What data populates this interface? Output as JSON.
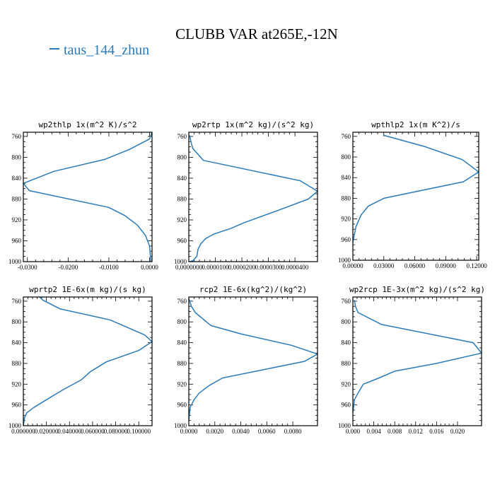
{
  "figure": {
    "title": "CLUBB VAR at265E,-12N",
    "legend": {
      "label": "taus_144_zhun",
      "color": "#2a7ab8"
    }
  },
  "chart_data": [
    {
      "type": "line",
      "title": "wp2thlp  1x(m^2 K)/s^2",
      "xlim": [
        -0.031,
        0.0006
      ],
      "ylim": [
        1000,
        752
      ],
      "x_ticks": [
        -0.03,
        -0.02,
        -0.01,
        0
      ],
      "x_tick_labels": [
        "-0.0300",
        "-0.0200",
        "-0.0100",
        "0.0000"
      ],
      "y_ticks": [
        760,
        800,
        840,
        880,
        920,
        960,
        1000
      ],
      "y_tick_labels": [
        "760",
        "800",
        "840",
        "880",
        "920",
        "960",
        "1000"
      ],
      "series": [
        {
          "color": "#2a7ab8",
          "x": [
            0.0006,
            0.0,
            -0.005,
            -0.011,
            -0.0235,
            -0.031,
            -0.0295,
            -0.01,
            -0.006,
            -0.003,
            -0.001,
            0.0,
            0.0002,
            0.0003
          ],
          "y": [
            752,
            765,
            785,
            804,
            827,
            850,
            864,
            896,
            912,
            930,
            950,
            970,
            990,
            1000
          ]
        }
      ]
    },
    {
      "type": "line",
      "title": "wp2rtp  1x(m^2 kg)/(s^2 kg)",
      "xlim": [
        0,
        4.85e-05
      ],
      "ylim": [
        1000,
        752
      ],
      "x_ticks": [
        0,
        1e-05,
        2e-05,
        3e-05,
        4e-05
      ],
      "x_tick_labels": [
        "0.0000000",
        "0.0000100",
        "0.0000200",
        "0.0000300",
        "0.0000400"
      ],
      "y_ticks": [
        760,
        800,
        840,
        880,
        920,
        960,
        1000
      ],
      "y_tick_labels": [
        "760",
        "800",
        "840",
        "880",
        "920",
        "960",
        "1000"
      ],
      "series": [
        {
          "color": "#2a7ab8",
          "x": [
            3e-07,
            8e-07,
            1.5e-06,
            5.5e-06,
            4.2e-05,
            4.85e-05,
            4.5e-05,
            3.3e-05,
            2.1e-05,
            1.6e-05,
            9.5e-06,
            6.3e-06,
            4.5e-06,
            3.5e-06,
            3e-06,
            1.6e-06,
            4e-07
          ],
          "y": [
            758,
            770,
            783,
            806,
            845,
            865,
            880,
            903,
            925,
            936,
            947,
            956,
            966,
            976,
            990,
            998,
            1000
          ]
        }
      ]
    },
    {
      "type": "line",
      "title": "wpthlp2  1x(m K^2)/s",
      "xlim": [
        0,
        0.122
      ],
      "ylim": [
        1000,
        752
      ],
      "x_ticks": [
        0,
        0.03,
        0.06,
        0.09,
        0.12
      ],
      "x_tick_labels": [
        "0.00000",
        "0.03000",
        "0.06000",
        "0.09000",
        "0.12000"
      ],
      "y_ticks": [
        760,
        800,
        840,
        880,
        920,
        960,
        1000
      ],
      "y_tick_labels": [
        "760",
        "800",
        "840",
        "880",
        "920",
        "960",
        "1000"
      ],
      "series": [
        {
          "color": "#2a7ab8",
          "x": [
            0.03,
            0.07,
            0.106,
            0.122,
            0.107,
            0.03,
            0.015,
            0.008,
            0.003,
            0.0
          ],
          "y": [
            758,
            780,
            805,
            829,
            848,
            880,
            895,
            912,
            935,
            965
          ]
        }
      ]
    },
    {
      "type": "line",
      "title": "wprtp2  1E-6x(m kg)/(s kg)",
      "xlim": [
        0,
        0.1115
      ],
      "ylim": [
        1000,
        752
      ],
      "x_ticks": [
        0,
        0.02,
        0.04,
        0.06,
        0.08,
        0.1
      ],
      "x_tick_labels": [
        "0.000000",
        "0.020000",
        "0.040000",
        "0.060000",
        "0.080000",
        "0.100000"
      ],
      "y_ticks": [
        760,
        800,
        840,
        880,
        920,
        960,
        1000
      ],
      "y_tick_labels": [
        "760",
        "800",
        "840",
        "880",
        "920",
        "960",
        "1000"
      ],
      "series": [
        {
          "color": "#2a7ab8",
          "x": [
            0.014,
            0.017,
            0.032,
            0.075,
            0.105,
            0.1115,
            0.1,
            0.072,
            0.058,
            0.05,
            0.035,
            0.02,
            0.009,
            0.003,
            0.001,
            0.0
          ],
          "y": [
            752,
            758,
            775,
            796,
            825,
            838,
            855,
            877,
            896,
            912,
            930,
            950,
            965,
            975,
            985,
            1000
          ]
        }
      ]
    },
    {
      "type": "line",
      "title": "rcp2  1E-6x(kg^2)/(kg^2)",
      "xlim": [
        0,
        0.0099
      ],
      "ylim": [
        1000,
        752
      ],
      "x_ticks": [
        0,
        0.002,
        0.004,
        0.006,
        0.008
      ],
      "x_tick_labels": [
        "0.0000",
        "0.0020",
        "0.0040",
        "0.0060",
        "0.0080"
      ],
      "y_ticks": [
        760,
        800,
        840,
        880,
        920,
        960,
        1000
      ],
      "y_tick_labels": [
        "760",
        "800",
        "840",
        "880",
        "920",
        "960",
        "1000"
      ],
      "series": [
        {
          "color": "#2a7ab8",
          "x": [
            0.0,
            0.0002,
            0.0005,
            0.0017,
            0.004,
            0.0079,
            0.0099,
            0.0089,
            0.0026,
            0.0016,
            0.0008,
            0.0004,
            0.0001,
            0.0
          ],
          "y": [
            755,
            770,
            782,
            807,
            823,
            845,
            862,
            876,
            908,
            922,
            937,
            950,
            965,
            990
          ]
        }
      ]
    },
    {
      "type": "line",
      "title": "wp2rcp  1E-3x(m^2 kg)/(s^2 kg)",
      "xlim": [
        0,
        0.0246
      ],
      "ylim": [
        1000,
        752
      ],
      "x_ticks": [
        0,
        0.004,
        0.008,
        0.012,
        0.016,
        0.02
      ],
      "x_tick_labels": [
        "0.000",
        "0.004",
        "0.008",
        "0.012",
        "0.016",
        "0.020"
      ],
      "y_ticks": [
        760,
        800,
        840,
        880,
        920,
        960,
        1000
      ],
      "y_tick_labels": [
        "760",
        "800",
        "840",
        "880",
        "920",
        "960",
        "1000"
      ],
      "series": [
        {
          "color": "#2a7ab8",
          "x": [
            0.0003,
            0.0005,
            0.001,
            0.0055,
            0.023,
            0.0246,
            0.016,
            0.008,
            0.005,
            0.002,
            0.001,
            0.0003,
            0.0
          ],
          "y": [
            758,
            770,
            782,
            805,
            840,
            860,
            880,
            895,
            908,
            920,
            937,
            950,
            975
          ]
        }
      ]
    }
  ]
}
